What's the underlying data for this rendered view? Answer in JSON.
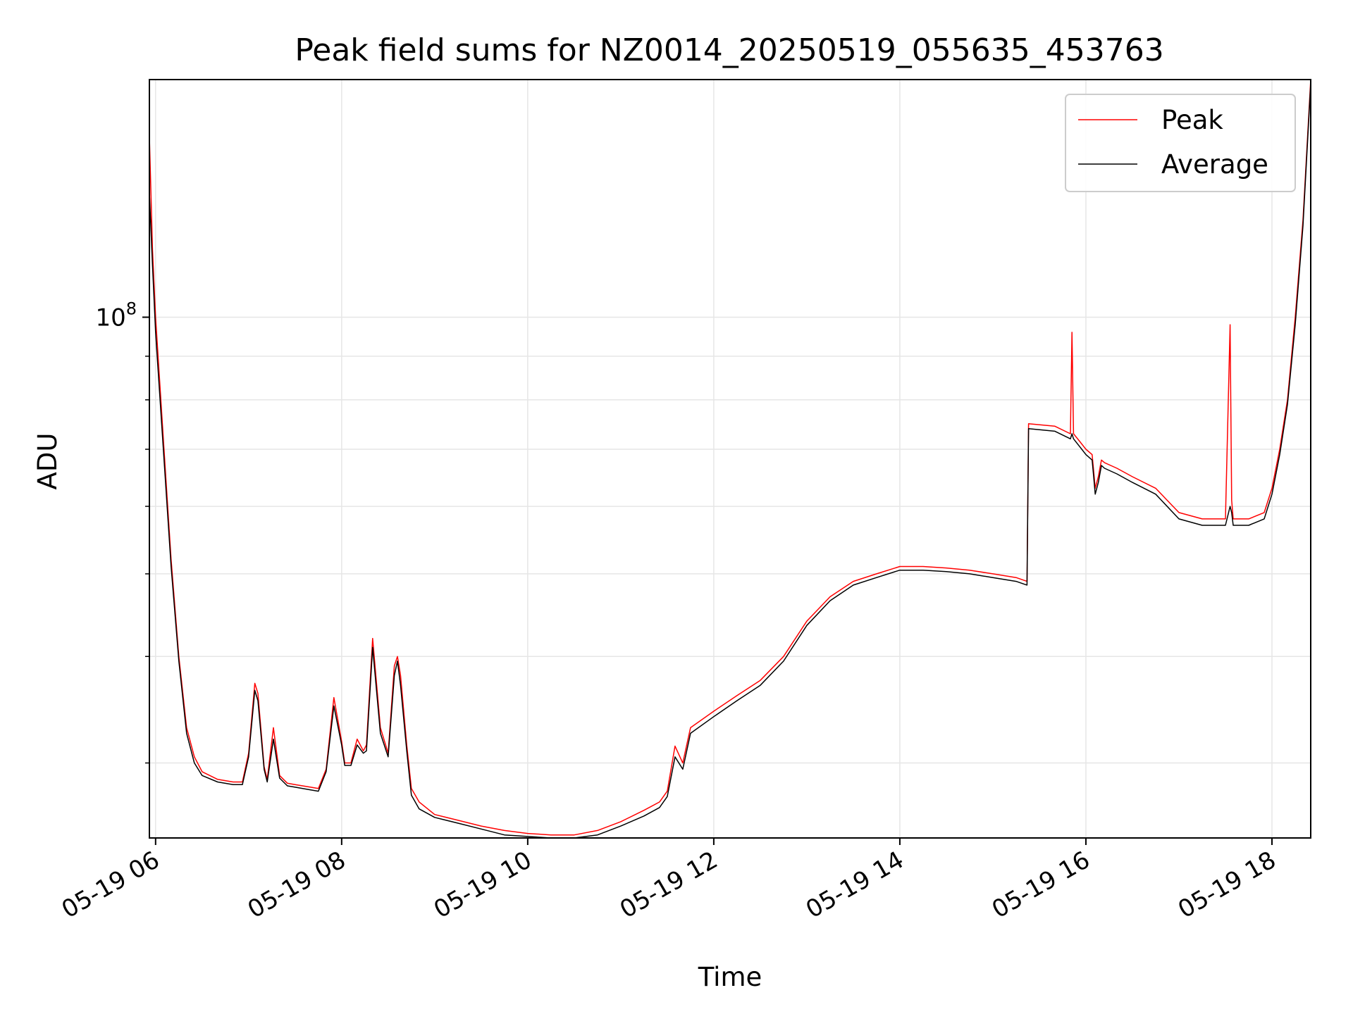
{
  "chart_data": {
    "type": "line",
    "title": "Peak field sums for NZ0014_20250519_055635_453763",
    "xlabel": "Time",
    "ylabel": "ADU",
    "y_scale": "log",
    "y_tick_label": "10^8",
    "y_tick_value": 100000000,
    "xlim": [
      "05-19 05:56",
      "05-19 18:25"
    ],
    "ylim": [
      24500000,
      190000000
    ],
    "x_ticks": [
      {
        "x": "05-19 06:00",
        "label": "05-19 06"
      },
      {
        "x": "05-19 08:00",
        "label": "05-19 08"
      },
      {
        "x": "05-19 10:00",
        "label": "05-19 10"
      },
      {
        "x": "05-19 12:00",
        "label": "05-19 12"
      },
      {
        "x": "05-19 14:00",
        "label": "05-19 14"
      },
      {
        "x": "05-19 16:00",
        "label": "05-19 16"
      },
      {
        "x": "05-19 18:00",
        "label": "05-19 18"
      }
    ],
    "grid": true,
    "legend_position": "top-right",
    "series": [
      {
        "name": "Peak",
        "color": "#ff0000",
        "x": [
          "05-19 05:56",
          "05-19 05:58",
          "05-19 06:00",
          "05-19 06:05",
          "05-19 06:10",
          "05-19 06:15",
          "05-19 06:20",
          "05-19 06:25",
          "05-19 06:30",
          "05-19 06:40",
          "05-19 06:50",
          "05-19 06:56",
          "05-19 07:00",
          "05-19 07:04",
          "05-19 07:06",
          "05-19 07:10",
          "05-19 07:12",
          "05-19 07:16",
          "05-19 07:20",
          "05-19 07:25",
          "05-19 07:30",
          "05-19 07:40",
          "05-19 07:45",
          "05-19 07:50",
          "05-19 07:55",
          "05-19 08:00",
          "05-19 08:02",
          "05-19 08:06",
          "05-19 08:10",
          "05-19 08:14",
          "05-19 08:16",
          "05-19 08:20",
          "05-19 08:25",
          "05-19 08:30",
          "05-19 08:34",
          "05-19 08:36",
          "05-19 08:38",
          "05-19 08:42",
          "05-19 08:45",
          "05-19 08:50",
          "05-19 09:00",
          "05-19 09:15",
          "05-19 09:30",
          "05-19 09:45",
          "05-19 10:00",
          "05-19 10:15",
          "05-19 10:30",
          "05-19 10:45",
          "05-19 11:00",
          "05-19 11:15",
          "05-19 11:25",
          "05-19 11:30",
          "05-19 11:35",
          "05-19 11:40",
          "05-19 11:45",
          "05-19 12:00",
          "05-19 12:15",
          "05-19 12:30",
          "05-19 12:45",
          "05-19 13:00",
          "05-19 13:15",
          "05-19 13:30",
          "05-19 13:45",
          "05-19 14:00",
          "05-19 14:15",
          "05-19 14:30",
          "05-19 14:45",
          "05-19 15:00",
          "05-19 15:15",
          "05-19 15:22",
          "05-19 15:23",
          "05-19 15:40",
          "05-19 15:50",
          "05-19 15:51",
          "05-19 15:52",
          "05-19 15:56",
          "05-19 16:00",
          "05-19 16:04",
          "05-19 16:05",
          "05-19 16:06",
          "05-19 16:08",
          "05-19 16:10",
          "05-19 16:12",
          "05-19 16:20",
          "05-19 16:30",
          "05-19 16:45",
          "05-19 17:00",
          "05-19 17:15",
          "05-19 17:30",
          "05-19 17:33",
          "05-19 17:34",
          "05-19 17:35",
          "05-19 17:45",
          "05-19 17:55",
          "05-19 18:00",
          "05-19 18:05",
          "05-19 18:10",
          "05-19 18:15",
          "05-19 18:20",
          "05-19 18:25"
        ],
        "y": [
          163000000,
          120000000,
          100000000,
          72000000,
          52000000,
          40000000,
          33000000,
          30500000,
          29300000,
          28700000,
          28500000,
          28500000,
          30800000,
          37200000,
          36200000,
          29700000,
          28700000,
          33000000,
          29000000,
          28400000,
          28300000,
          28100000,
          28000000,
          29500000,
          35800000,
          31800000,
          30000000,
          30000000,
          32000000,
          31000000,
          31500000,
          42000000,
          33000000,
          30800000,
          39000000,
          40000000,
          38000000,
          31500000,
          28000000,
          27000000,
          26100000,
          25700000,
          25300000,
          25000000,
          24800000,
          24700000,
          24700000,
          25000000,
          25600000,
          26400000,
          27000000,
          27800000,
          31400000,
          30000000,
          33000000,
          34500000,
          36000000,
          37500000,
          40000000,
          44000000,
          47000000,
          49000000,
          50000000,
          51000000,
          51000000,
          50800000,
          50500000,
          50000000,
          49500000,
          49000000,
          75000000,
          74500000,
          73000000,
          96000000,
          73000000,
          71500000,
          70000000,
          69000000,
          66000000,
          63000000,
          65000000,
          68000000,
          67500000,
          66500000,
          65000000,
          63000000,
          59000000,
          58000000,
          58000000,
          98000000,
          61000000,
          58000000,
          58000000,
          59000000,
          63000000,
          70000000,
          80000000,
          100000000,
          130000000,
          190000000
        ]
      },
      {
        "name": "Average",
        "color": "#000000",
        "x": [
          "05-19 05:56",
          "05-19 05:58",
          "05-19 06:00",
          "05-19 06:05",
          "05-19 06:10",
          "05-19 06:15",
          "05-19 06:20",
          "05-19 06:25",
          "05-19 06:30",
          "05-19 06:40",
          "05-19 06:50",
          "05-19 06:56",
          "05-19 07:00",
          "05-19 07:04",
          "05-19 07:06",
          "05-19 07:10",
          "05-19 07:12",
          "05-19 07:16",
          "05-19 07:20",
          "05-19 07:25",
          "05-19 07:30",
          "05-19 07:40",
          "05-19 07:45",
          "05-19 07:50",
          "05-19 07:55",
          "05-19 08:00",
          "05-19 08:02",
          "05-19 08:06",
          "05-19 08:10",
          "05-19 08:14",
          "05-19 08:16",
          "05-19 08:20",
          "05-19 08:25",
          "05-19 08:30",
          "05-19 08:34",
          "05-19 08:36",
          "05-19 08:38",
          "05-19 08:42",
          "05-19 08:45",
          "05-19 08:50",
          "05-19 09:00",
          "05-19 09:15",
          "05-19 09:30",
          "05-19 09:45",
          "05-19 10:00",
          "05-19 10:15",
          "05-19 10:30",
          "05-19 10:45",
          "05-19 11:00",
          "05-19 11:15",
          "05-19 11:25",
          "05-19 11:30",
          "05-19 11:35",
          "05-19 11:40",
          "05-19 11:45",
          "05-19 12:00",
          "05-19 12:15",
          "05-19 12:30",
          "05-19 12:45",
          "05-19 13:00",
          "05-19 13:15",
          "05-19 13:30",
          "05-19 13:45",
          "05-19 14:00",
          "05-19 14:15",
          "05-19 14:30",
          "05-19 14:45",
          "05-19 15:00",
          "05-19 15:15",
          "05-19 15:22",
          "05-19 15:23",
          "05-19 15:40",
          "05-19 15:50",
          "05-19 15:51",
          "05-19 15:52",
          "05-19 15:56",
          "05-19 16:00",
          "05-19 16:04",
          "05-19 16:05",
          "05-19 16:06",
          "05-19 16:08",
          "05-19 16:10",
          "05-19 16:12",
          "05-19 16:20",
          "05-19 16:30",
          "05-19 16:45",
          "05-19 17:00",
          "05-19 17:15",
          "05-19 17:30",
          "05-19 17:33",
          "05-19 17:34",
          "05-19 17:35",
          "05-19 17:45",
          "05-19 17:55",
          "05-19 18:00",
          "05-19 18:05",
          "05-19 18:10",
          "05-19 18:15",
          "05-19 18:20",
          "05-19 18:25"
        ],
        "y": [
          140000000,
          115000000,
          96000000,
          70000000,
          51000000,
          39500000,
          32500000,
          30000000,
          29000000,
          28500000,
          28300000,
          28300000,
          30500000,
          36500000,
          35500000,
          29500000,
          28500000,
          32000000,
          28800000,
          28200000,
          28100000,
          27900000,
          27800000,
          29300000,
          35000000,
          31500000,
          29800000,
          29800000,
          31500000,
          30800000,
          31000000,
          41000000,
          32500000,
          30500000,
          38000000,
          39500000,
          37000000,
          31000000,
          27500000,
          26500000,
          25900000,
          25500000,
          25100000,
          24700000,
          24600000,
          24500000,
          24500000,
          24700000,
          25300000,
          26000000,
          26600000,
          27400000,
          30500000,
          29500000,
          32500000,
          34000000,
          35500000,
          37000000,
          39500000,
          43500000,
          46500000,
          48500000,
          49500000,
          50500000,
          50500000,
          50300000,
          50000000,
          49500000,
          49000000,
          48500000,
          74000000,
          73500000,
          72000000,
          73000000,
          72000000,
          70500000,
          69000000,
          68000000,
          65000000,
          62000000,
          64000000,
          67000000,
          66500000,
          65500000,
          64000000,
          62000000,
          58000000,
          57000000,
          57000000,
          60000000,
          59000000,
          57000000,
          57000000,
          58000000,
          62000000,
          69000000,
          79000000,
          98000000,
          128000000,
          188000000
        ]
      }
    ]
  }
}
